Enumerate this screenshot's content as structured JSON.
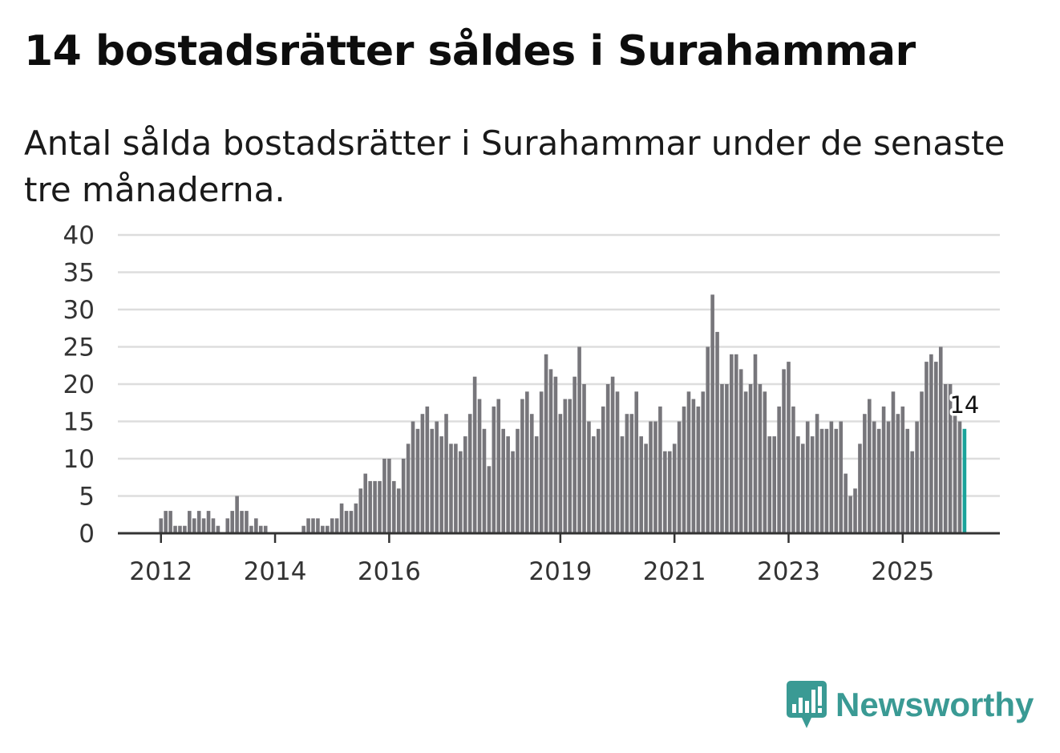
{
  "title": "14 bostadsrätter såldes i Surahammar",
  "subtitle": "Antal sålda bostadsrätter i Surahammar under de senaste tre månaderna.",
  "logo": {
    "text": "Newsworthy",
    "color": "#3a9a94"
  },
  "colors": {
    "bar": "#77767b",
    "highlight": "#1aa39a",
    "grid": "#dddddd",
    "axis": "#333333"
  },
  "chart_data": {
    "type": "bar",
    "title": "14 bostadsrätter såldes i Surahammar",
    "xlabel": "",
    "ylabel": "",
    "ylim": [
      0,
      40
    ],
    "yticks": [
      0,
      5,
      10,
      15,
      20,
      25,
      30,
      35,
      40
    ],
    "start_year": 2011,
    "start_month": 5,
    "xticks": [
      "2012",
      "2014",
      "2016",
      "2019",
      "2021",
      "2023",
      "2025"
    ],
    "values": [
      0,
      0,
      0,
      0,
      0,
      0,
      0,
      0,
      2,
      3,
      3,
      1,
      1,
      1,
      3,
      2,
      3,
      2,
      3,
      2,
      1,
      0,
      2,
      3,
      5,
      3,
      3,
      1,
      2,
      1,
      1,
      0,
      0,
      0,
      0,
      0,
      0,
      0,
      1,
      2,
      2,
      2,
      1,
      1,
      2,
      2,
      4,
      3,
      3,
      4,
      6,
      8,
      7,
      7,
      7,
      10,
      10,
      7,
      6,
      10,
      12,
      15,
      14,
      16,
      17,
      14,
      15,
      13,
      16,
      12,
      12,
      11,
      13,
      16,
      21,
      18,
      14,
      9,
      17,
      18,
      14,
      13,
      11,
      14,
      18,
      19,
      16,
      13,
      19,
      24,
      22,
      21,
      16,
      18,
      18,
      21,
      25,
      20,
      15,
      13,
      14,
      17,
      20,
      21,
      19,
      13,
      16,
      16,
      19,
      13,
      12,
      15,
      15,
      17,
      11,
      11,
      12,
      15,
      17,
      19,
      18,
      17,
      19,
      25,
      32,
      27,
      20,
      20,
      24,
      24,
      22,
      19,
      20,
      24,
      20,
      19,
      13,
      13,
      17,
      22,
      23,
      17,
      13,
      12,
      15,
      13,
      16,
      14,
      14,
      15,
      14,
      15,
      8,
      5,
      6,
      12,
      16,
      18,
      15,
      14,
      17,
      15,
      19,
      16,
      17,
      14,
      11,
      15,
      19,
      23,
      24,
      23,
      25,
      20,
      20,
      16,
      15,
      14
    ],
    "highlight_last": true,
    "last_value_label": "14"
  }
}
